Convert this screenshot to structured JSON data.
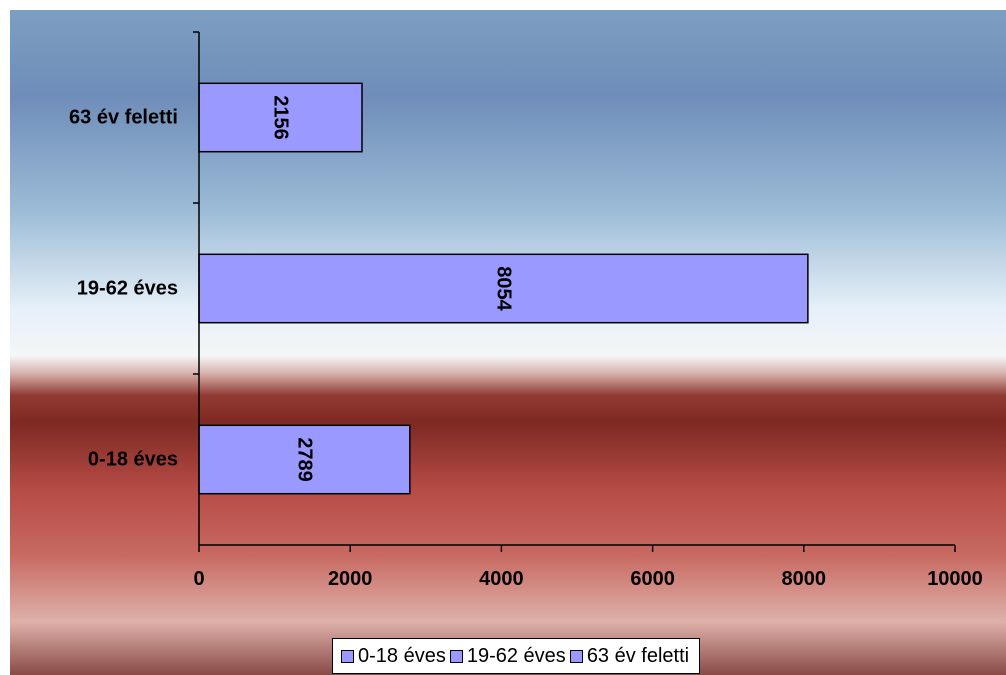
{
  "chart_data": {
    "type": "bar",
    "orientation": "horizontal",
    "categories": [
      "0-18 éves",
      "19-62 éves",
      "63 év feletti"
    ],
    "values": [
      2789,
      8054,
      2156
    ],
    "data_labels": [
      "2789",
      "8054",
      "2156"
    ],
    "xlim": [
      0,
      10000
    ],
    "xticks": [
      "0",
      "2000",
      "4000",
      "6000",
      "8000",
      "10000"
    ],
    "title": "",
    "xlabel": "",
    "ylabel": "",
    "legend": {
      "position": "bottom",
      "entries": [
        "0-18 éves",
        "19-62 éves",
        "63 év feletti"
      ]
    },
    "grid": false,
    "bar_color": "#9999ff",
    "bar_edge_color": "#000000"
  }
}
